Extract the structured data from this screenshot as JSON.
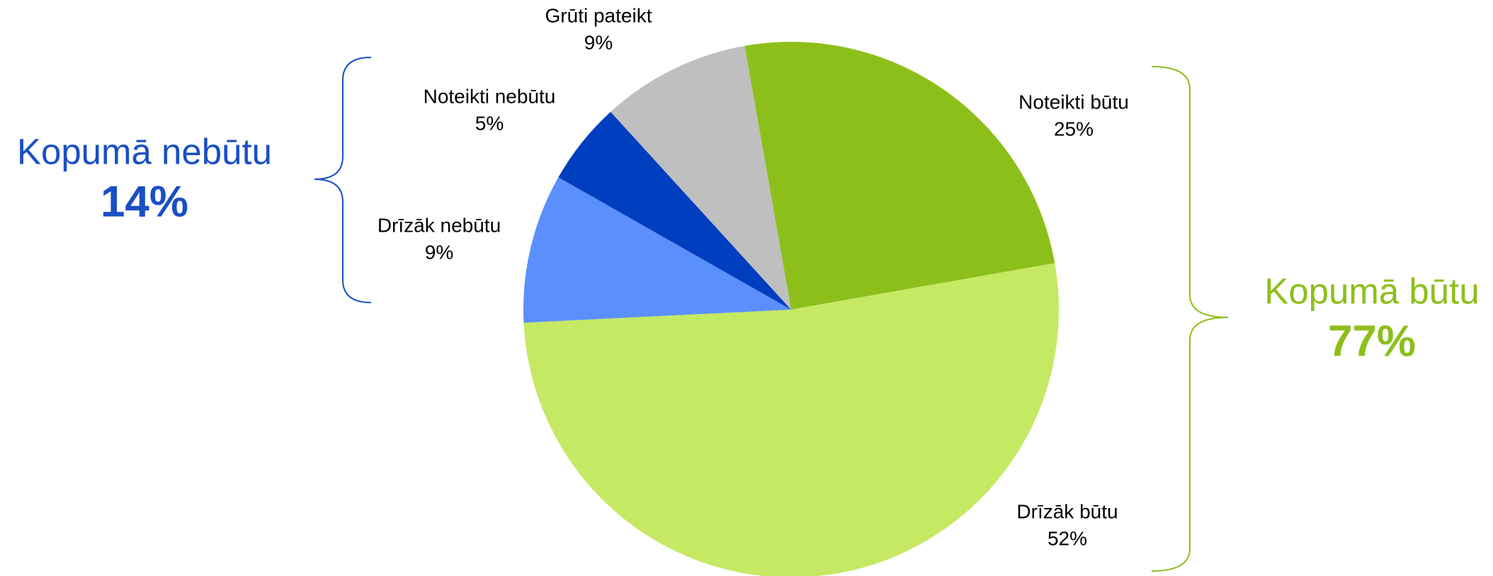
{
  "chart_data": {
    "type": "pie",
    "categories": [
      "Noteikti būtu",
      "Drīzāk būtu",
      "Drīzāk nebūtu",
      "Noteikti nebūtu",
      "Grūti pateikt"
    ],
    "values": [
      25,
      52,
      9,
      5,
      9
    ],
    "value_labels": [
      "25%",
      "52%",
      "9%",
      "5%",
      "9%"
    ],
    "colors": [
      "#8dbf1b",
      "#c5e963",
      "#5b8ffd",
      "#003ec0",
      "#bfbfbf"
    ],
    "groups": [
      {
        "name": "Kopumā nebūtu",
        "value": 14,
        "value_label": "14%",
        "color": "#1a4fc4"
      },
      {
        "name": "Kopumā būtu",
        "value": 77,
        "value_label": "77%",
        "color": "#8dbf1b"
      }
    ]
  }
}
